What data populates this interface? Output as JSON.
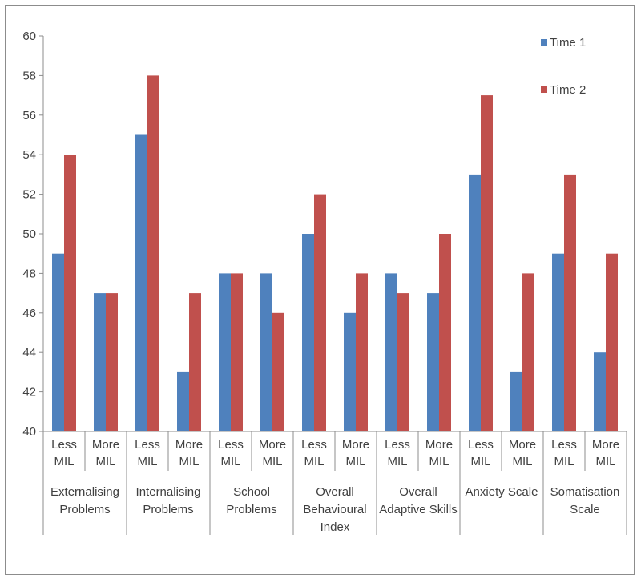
{
  "chart_data": {
    "type": "bar",
    "group_labels": [
      [
        "Externalising",
        "Problems"
      ],
      [
        "Internalising",
        "Problems"
      ],
      [
        "School",
        "Problems"
      ],
      [
        "Overall",
        "Behavioural",
        "Index"
      ],
      [
        "Overall",
        "Adaptive Skills"
      ],
      [
        "Anxiety Scale"
      ],
      [
        "Somatisation",
        "Scale"
      ]
    ],
    "sub_labels": [
      [
        "Less",
        "MIL"
      ],
      [
        "More",
        "MIL"
      ]
    ],
    "series": [
      {
        "name": "Time 1",
        "color": "#4f81bd",
        "values": [
          [
            49,
            47
          ],
          [
            55,
            43
          ],
          [
            48,
            48
          ],
          [
            50,
            46
          ],
          [
            48,
            47
          ],
          [
            53,
            43
          ],
          [
            49,
            44
          ]
        ]
      },
      {
        "name": "Time 2",
        "color": "#c0504d",
        "values": [
          [
            54,
            47
          ],
          [
            58,
            47
          ],
          [
            48,
            46
          ],
          [
            52,
            48
          ],
          [
            47,
            50
          ],
          [
            57,
            48
          ],
          [
            53,
            49
          ]
        ]
      }
    ],
    "ylim": [
      40,
      60
    ],
    "yticks": [
      40,
      42,
      44,
      46,
      48,
      50,
      52,
      54,
      56,
      58,
      60
    ],
    "legend": "top-right",
    "grid": false
  }
}
